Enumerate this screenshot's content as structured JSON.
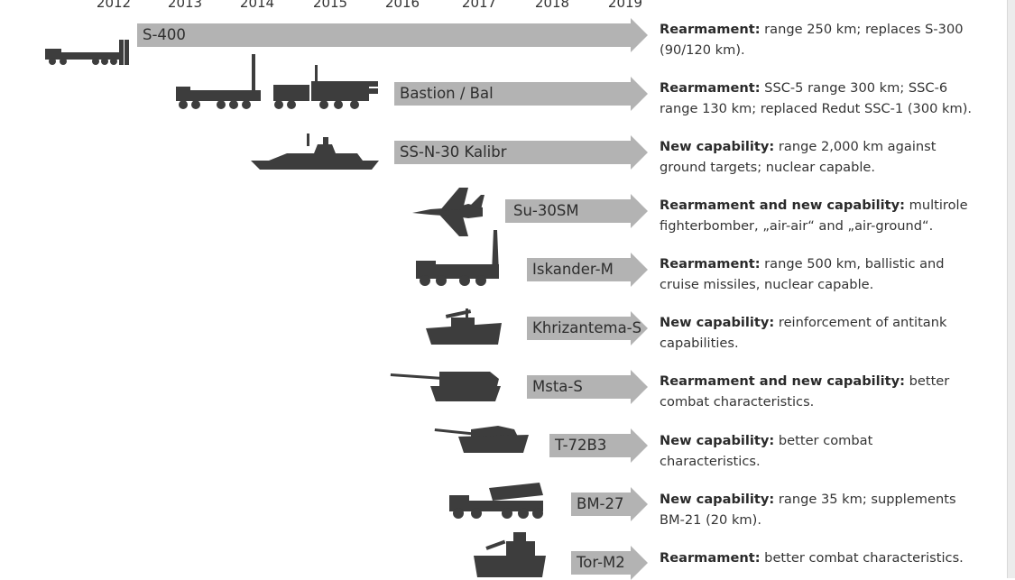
{
  "years": [
    "2012",
    "2013",
    "2014",
    "2015",
    "2016",
    "2017",
    "2018",
    "2019"
  ],
  "colors": {
    "arrow": "#b3b3b3",
    "silhouette": "#3d3d3d",
    "text": "#333333"
  },
  "rows": [
    {
      "label": "S-400",
      "icon": "s400-launcher-icon",
      "desc_bold": "Rearmament:",
      "desc_rest": " range 250 km; replaces S-300 (90/120 km)."
    },
    {
      "label": "Bastion / Bal",
      "icon": "coastal-missile-trucks-icon",
      "desc_bold": "Rearmament:",
      "desc_rest": " SSC-5 range 300 km; SSC-6 range 130 km; replaced Redut SSC-1 (300 km)."
    },
    {
      "label": "SS-N-30 Kalibr",
      "icon": "warship-icon",
      "desc_bold": "New capability:",
      "desc_rest": " range 2,000 km against ground targets; nuclear capable."
    },
    {
      "label": "Su-30SM",
      "icon": "fighter-jet-icon",
      "desc_bold": "Rearmament and new capability:",
      "desc_rest": " multirole fighterbomber, „air-air“ and „air-ground“."
    },
    {
      "label": "Iskander-M",
      "icon": "ballistic-launcher-icon",
      "desc_bold": "Rearmament:",
      "desc_rest": " range 500 km, ballistic and cruise missiles, nuclear capable."
    },
    {
      "label": "Khrizantema-S",
      "icon": "antitank-vehicle-icon",
      "desc_bold": "New capability:",
      "desc_rest": " reinforcement of antitank capabilities."
    },
    {
      "label": "Msta-S",
      "icon": "self-propelled-howitzer-icon",
      "desc_bold": "Rearmament and new capability:",
      "desc_rest": " better combat characteristics."
    },
    {
      "label": "T-72B3",
      "icon": "tank-icon",
      "desc_bold": "New capability:",
      "desc_rest": " better combat characteristics."
    },
    {
      "label": "BM-27",
      "icon": "rocket-launcher-truck-icon",
      "desc_bold": "New capability:",
      "desc_rest": " range 35 km; supplements BM-21 (20 km)."
    },
    {
      "label": "Tor-M2",
      "icon": "air-defense-vehicle-icon",
      "desc_bold": "Rearmament:",
      "desc_rest": " better combat characteristics."
    }
  ]
}
